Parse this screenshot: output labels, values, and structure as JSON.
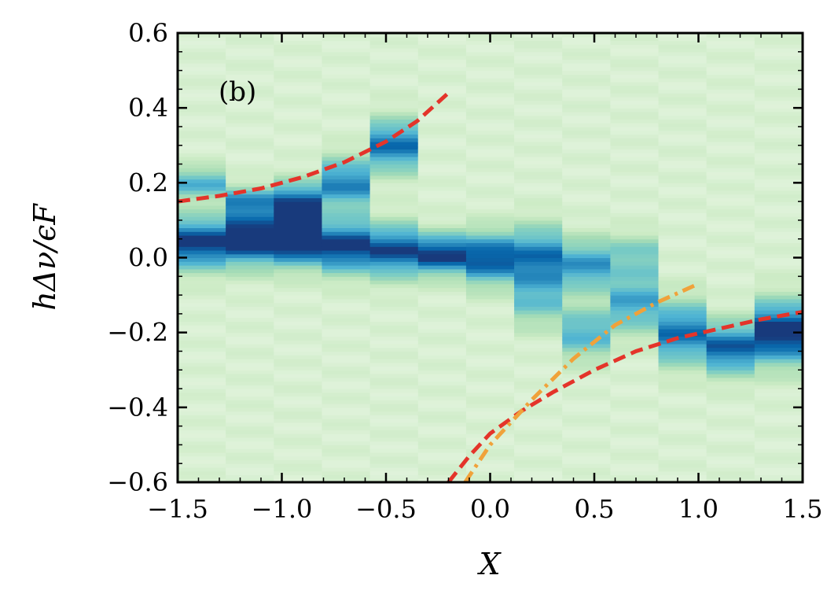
{
  "chart_data": {
    "type": "heatmap",
    "panel_label": "(b)",
    "xlabel": "X",
    "ylabel": "hΔν/ϵF",
    "xlim": [
      -1.5,
      1.5
    ],
    "ylim": [
      -0.6,
      0.6
    ],
    "x_ticks": [
      -1.5,
      -1.0,
      -0.5,
      0.0,
      0.5,
      1.0,
      1.5
    ],
    "x_tick_labels": [
      "−1.5",
      "−1.0",
      "−0.5",
      "0.0",
      "0.5",
      "1.0",
      "1.5"
    ],
    "y_ticks": [
      -0.6,
      -0.4,
      -0.2,
      0.0,
      0.2,
      0.4,
      0.6
    ],
    "y_tick_labels": [
      "−0.6",
      "−0.4",
      "−0.2",
      "0.0",
      "0.2",
      "0.4",
      "0.6"
    ],
    "colormap": "GnBu",
    "heatmap_columns": [
      {
        "x_center": -1.39,
        "peaks": [
          {
            "y": 0.04,
            "intensity": 0.85,
            "width": 0.05
          },
          {
            "y": 0.2,
            "intensity": 0.5,
            "width": 0.03
          }
        ]
      },
      {
        "x_center": -1.16,
        "peaks": [
          {
            "y": 0.05,
            "intensity": 0.95,
            "width": 0.05
          },
          {
            "y": 0.15,
            "intensity": 0.55,
            "width": 0.03
          }
        ]
      },
      {
        "x_center": -0.93,
        "peaks": [
          {
            "y": 0.05,
            "intensity": 1.0,
            "width": 0.05
          },
          {
            "y": 0.15,
            "intensity": 0.7,
            "width": 0.04
          }
        ]
      },
      {
        "x_center": -0.7,
        "peaks": [
          {
            "y": 0.03,
            "intensity": 0.85,
            "width": 0.05
          },
          {
            "y": 0.2,
            "intensity": 0.65,
            "width": 0.05
          }
        ]
      },
      {
        "x_center": -0.47,
        "peaks": [
          {
            "y": 0.02,
            "intensity": 0.8,
            "width": 0.05
          },
          {
            "y": 0.3,
            "intensity": 0.7,
            "width": 0.05
          }
        ]
      },
      {
        "x_center": -0.25,
        "peaks": [
          {
            "y": 0.01,
            "intensity": 0.85,
            "width": 0.04
          }
        ]
      },
      {
        "x_center": -0.02,
        "peaks": [
          {
            "y": 0.0,
            "intensity": 0.8,
            "width": 0.05
          }
        ]
      },
      {
        "x_center": 0.21,
        "peaks": [
          {
            "y": 0.0,
            "intensity": 0.7,
            "width": 0.06
          },
          {
            "y": -0.12,
            "intensity": 0.35,
            "width": 0.05
          }
        ]
      },
      {
        "x_center": 0.44,
        "peaks": [
          {
            "y": -0.02,
            "intensity": 0.6,
            "width": 0.05
          },
          {
            "y": -0.2,
            "intensity": 0.5,
            "width": 0.05
          }
        ]
      },
      {
        "x_center": 0.67,
        "peaks": [
          {
            "y": -0.12,
            "intensity": 0.55,
            "width": 0.06
          },
          {
            "y": 0.01,
            "intensity": 0.35,
            "width": 0.04
          }
        ]
      },
      {
        "x_center": 0.9,
        "peaks": [
          {
            "y": -0.2,
            "intensity": 0.7,
            "width": 0.06
          }
        ]
      },
      {
        "x_center": 1.13,
        "peaks": [
          {
            "y": -0.24,
            "intensity": 0.75,
            "width": 0.05
          }
        ]
      },
      {
        "x_center": 1.36,
        "peaks": [
          {
            "y": -0.2,
            "intensity": 0.9,
            "width": 0.06
          }
        ]
      }
    ],
    "curves": [
      {
        "style": "dashed",
        "color": "#e4342a",
        "x": [
          -1.5,
          -1.3,
          -1.1,
          -0.9,
          -0.7,
          -0.5,
          -0.35,
          -0.2
        ],
        "y": [
          0.15,
          0.165,
          0.185,
          0.215,
          0.255,
          0.31,
          0.365,
          0.44
        ]
      },
      {
        "style": "dashed",
        "color": "#e4342a",
        "x": [
          -0.2,
          -0.1,
          0.0,
          0.15,
          0.3,
          0.5,
          0.7,
          0.9,
          1.1,
          1.3,
          1.5
        ],
        "y": [
          -0.6,
          -0.53,
          -0.47,
          -0.41,
          -0.36,
          -0.3,
          -0.25,
          -0.215,
          -0.19,
          -0.165,
          -0.145
        ]
      },
      {
        "style": "dashdot",
        "color": "#f0a23a",
        "x": [
          -0.12,
          0.0,
          0.2,
          0.4,
          0.6,
          0.8,
          1.0
        ],
        "y": [
          -0.6,
          -0.5,
          -0.38,
          -0.27,
          -0.18,
          -0.12,
          -0.07
        ]
      }
    ]
  }
}
